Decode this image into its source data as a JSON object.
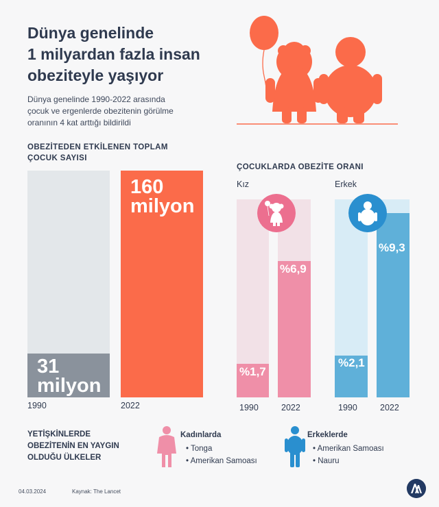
{
  "header": {
    "title_lines": [
      "Dünya genelinde",
      "1 milyardan fazla insan",
      "obeziteyle yaşıyor"
    ],
    "subtitle_lines": [
      "Dünya genelinde 1990-2022 arasında",
      "çocuk ve ergenlerde obezitenin görülme",
      "oranının 4 kat arttığı bildirildi"
    ]
  },
  "colors": {
    "accent": "#fb6b4a",
    "gray_bar": "#8a929c",
    "track": "#e3e7ea",
    "girl_pink": "#ef8fa8",
    "girl_badge": "#ec6f8f",
    "girl_track": "#f2e1e7",
    "boy_blue": "#5fb0d9",
    "boy_badge": "#2a8fcf",
    "boy_track": "#d8ecf6"
  },
  "chart_data": [
    {
      "type": "bar",
      "title": "OBEZİTEDEN ETKİLENEN TOPLAM ÇOCUK SAYISI",
      "title_lines": [
        "OBEZİTEDEN ETKİLENEN TOPLAM",
        "ÇOCUK SAYISI"
      ],
      "categories": [
        "1990",
        "2022"
      ],
      "values": [
        31,
        160
      ],
      "unit": "milyon",
      "ylim": [
        0,
        160
      ],
      "data_labels": [
        [
          "31",
          "milyon"
        ],
        [
          "160",
          "milyon"
        ]
      ]
    },
    {
      "type": "bar",
      "title": "ÇOCUKLARDA OBEZİTE ORANI",
      "series": [
        {
          "name": "Kız",
          "categories": [
            "1990",
            "2022"
          ],
          "values": [
            1.7,
            6.9
          ],
          "labels": [
            "%1,7",
            "%6,9"
          ]
        },
        {
          "name": "Erkek",
          "categories": [
            "1990",
            "2022"
          ],
          "values": [
            2.1,
            9.3
          ],
          "labels": [
            "%2,1",
            "%9,3"
          ]
        }
      ],
      "ylim": [
        0,
        10
      ]
    }
  ],
  "countries": {
    "heading_lines": [
      "YETİŞKİNLERDE",
      "OBEZİTENİN EN YAYGIN",
      "OLDUĞU ÜLKELER"
    ],
    "women": {
      "label": "Kadınlarda",
      "items": [
        "• Tonga",
        "• Amerikan Samoası"
      ]
    },
    "men": {
      "label": "Erkeklerde",
      "items": [
        "• Amerikan Samoası",
        "• Nauru"
      ]
    }
  },
  "footer": {
    "date": "04.03.2024",
    "source": "Kaynak: The Lancet"
  }
}
